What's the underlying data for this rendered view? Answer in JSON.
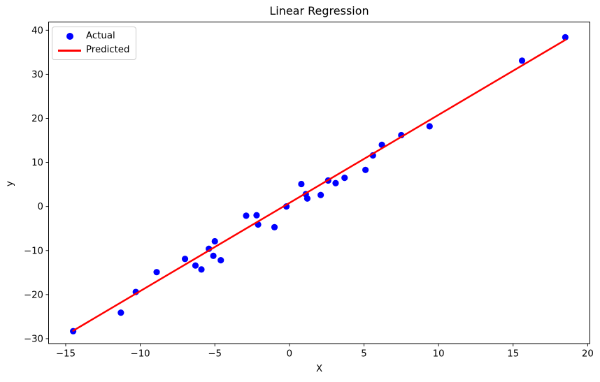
{
  "chart_data": {
    "type": "scatter",
    "title": "Linear Regression",
    "xlabel": "X",
    "ylabel": "y",
    "xlim": [
      -16.17,
      20.17
    ],
    "ylim": [
      -31.2,
      41.95
    ],
    "grid": false,
    "legend_position": "upper-left",
    "xticks": {
      "values": [
        -15,
        -10,
        -5,
        0,
        5,
        10,
        15,
        20
      ],
      "labels": [
        "−15",
        "−10",
        "−5",
        "0",
        "5",
        "10",
        "15",
        "20"
      ]
    },
    "yticks": {
      "values": [
        -30,
        -20,
        -10,
        0,
        10,
        20,
        30,
        40
      ],
      "labels": [
        "−30",
        "−20",
        "−10",
        "0",
        "10",
        "20",
        "30",
        "40"
      ]
    },
    "series": [
      {
        "name": "Actual",
        "type": "scatter",
        "color": "#0000ff",
        "marker": "circle",
        "points": [
          [
            -14.5,
            -28.3
          ],
          [
            -11.3,
            -24.1
          ],
          [
            -10.3,
            -19.4
          ],
          [
            -8.9,
            -14.9
          ],
          [
            -7.0,
            -11.9
          ],
          [
            -6.3,
            -13.4
          ],
          [
            -5.9,
            -14.3
          ],
          [
            -5.4,
            -9.6
          ],
          [
            -5.1,
            -11.2
          ],
          [
            -5.0,
            -7.9
          ],
          [
            -4.6,
            -12.2
          ],
          [
            -2.9,
            -2.1
          ],
          [
            -2.2,
            -2.0
          ],
          [
            -2.1,
            -4.1
          ],
          [
            -1.0,
            -4.7
          ],
          [
            -0.2,
            0.0
          ],
          [
            0.8,
            5.1
          ],
          [
            1.1,
            2.8
          ],
          [
            1.2,
            1.8
          ],
          [
            2.1,
            2.6
          ],
          [
            2.6,
            5.9
          ],
          [
            3.1,
            5.3
          ],
          [
            3.7,
            6.5
          ],
          [
            5.1,
            8.3
          ],
          [
            5.6,
            11.6
          ],
          [
            6.2,
            14.0
          ],
          [
            7.5,
            16.2
          ],
          [
            9.4,
            18.2
          ],
          [
            15.6,
            33.1
          ],
          [
            18.5,
            38.4
          ]
        ]
      },
      {
        "name": "Predicted",
        "type": "line",
        "color": "#ff0000",
        "slope": 2.0,
        "intercept": 0.8,
        "x_range": [
          -14.5,
          18.5
        ]
      }
    ]
  }
}
